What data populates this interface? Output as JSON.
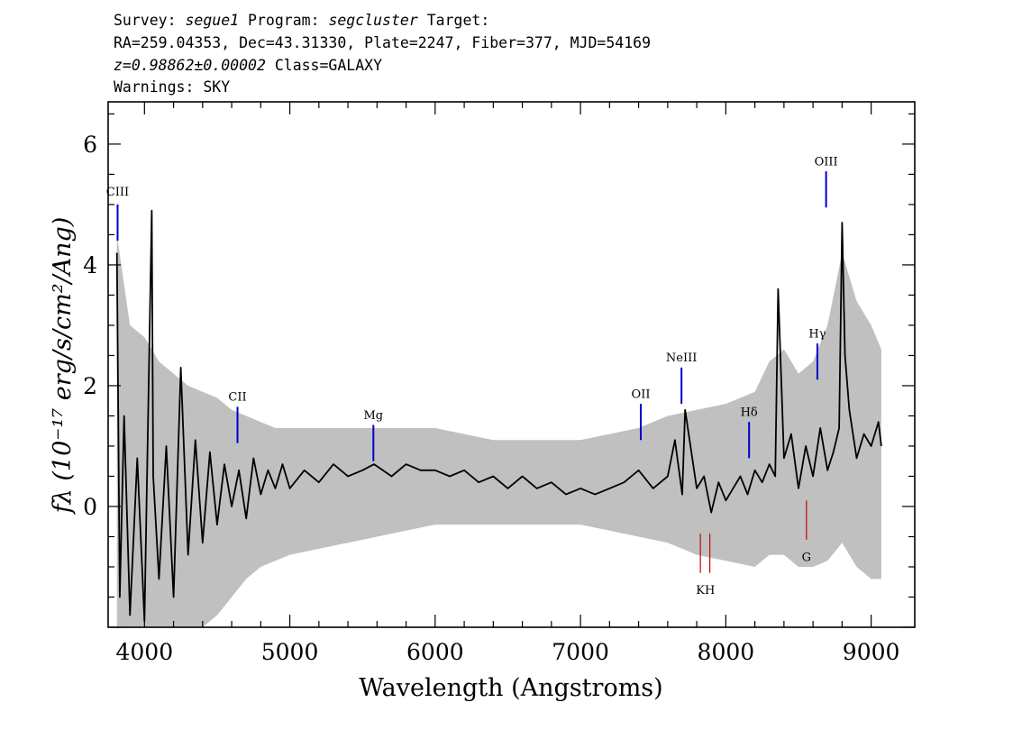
{
  "header": {
    "line1": {
      "survey_label": "Survey: ",
      "survey": "segue1",
      "program_label": " Program: ",
      "program": "segcluster",
      "target_label": " Target:"
    },
    "line2": "RA=259.04353, Dec=43.31330, Plate=2247, Fiber=377, MJD=54169",
    "line3": {
      "z": "z=0.98862±0.00002",
      "class": " Class=GALAXY"
    },
    "line4": "Warnings: SKY"
  },
  "chart_data": {
    "type": "line",
    "xlabel": "Wavelength (Angstroms)",
    "ylabel": "fλ (10⁻¹⁷ erg/s/cm²/Ang)",
    "xlim": [
      3750,
      9300
    ],
    "ylim": [
      -2.0,
      6.7
    ],
    "x_ticks": [
      4000,
      5000,
      6000,
      7000,
      8000,
      9000
    ],
    "y_ticks": [
      0,
      2,
      4,
      6
    ],
    "series": [
      {
        "role": "error band (gray)",
        "color": "#c0c0c0",
        "x": [
          3810,
          3900,
          4000,
          4100,
          4200,
          4300,
          4400,
          4500,
          4600,
          4700,
          4800,
          4900,
          5000,
          5200,
          5400,
          5600,
          5800,
          6000,
          6200,
          6400,
          6600,
          6800,
          7000,
          7200,
          7400,
          7600,
          7800,
          8000,
          8200,
          8300,
          8400,
          8500,
          8600,
          8700,
          8800,
          8900,
          9000,
          9070
        ],
        "upper": [
          4.5,
          3.0,
          2.8,
          2.4,
          2.2,
          2.0,
          1.9,
          1.8,
          1.6,
          1.5,
          1.4,
          1.3,
          1.3,
          1.3,
          1.3,
          1.3,
          1.3,
          1.3,
          1.2,
          1.1,
          1.1,
          1.1,
          1.1,
          1.2,
          1.3,
          1.5,
          1.6,
          1.7,
          1.9,
          2.4,
          2.6,
          2.2,
          2.4,
          3.0,
          4.2,
          3.4,
          3.0,
          2.6
        ],
        "lower": [
          -2.0,
          -2.0,
          -2.0,
          -2.0,
          -2.0,
          -2.0,
          -2.0,
          -1.8,
          -1.5,
          -1.2,
          -1.0,
          -0.9,
          -0.8,
          -0.7,
          -0.6,
          -0.5,
          -0.4,
          -0.3,
          -0.3,
          -0.3,
          -0.3,
          -0.3,
          -0.3,
          -0.4,
          -0.5,
          -0.6,
          -0.8,
          -0.9,
          -1.0,
          -0.8,
          -0.8,
          -1.0,
          -1.0,
          -0.9,
          -0.6,
          -1.0,
          -1.2,
          -1.2
        ]
      },
      {
        "role": "flux (black)",
        "color": "#000000",
        "x": [
          3810,
          3830,
          3860,
          3900,
          3950,
          4000,
          4050,
          4060,
          4100,
          4150,
          4200,
          4250,
          4300,
          4350,
          4400,
          4450,
          4500,
          4550,
          4600,
          4650,
          4700,
          4750,
          4800,
          4850,
          4900,
          4950,
          5000,
          5100,
          5200,
          5300,
          5400,
          5500,
          5580,
          5700,
          5800,
          5900,
          6000,
          6100,
          6200,
          6300,
          6400,
          6500,
          6600,
          6700,
          6800,
          6900,
          7000,
          7100,
          7200,
          7300,
          7400,
          7500,
          7600,
          7650,
          7700,
          7720,
          7800,
          7850,
          7900,
          7950,
          8000,
          8050,
          8100,
          8150,
          8200,
          8250,
          8300,
          8340,
          8360,
          8400,
          8450,
          8500,
          8550,
          8600,
          8650,
          8700,
          8740,
          8780,
          8800,
          8820,
          8850,
          8900,
          8950,
          9000,
          9050,
          9070
        ],
        "y": [
          4.2,
          -1.5,
          1.5,
          -1.8,
          0.8,
          -1.9,
          4.9,
          0.5,
          -1.2,
          1.0,
          -1.5,
          2.3,
          -0.8,
          1.1,
          -0.6,
          0.9,
          -0.3,
          0.7,
          0.0,
          0.6,
          -0.2,
          0.8,
          0.2,
          0.6,
          0.3,
          0.7,
          0.3,
          0.6,
          0.4,
          0.7,
          0.5,
          0.6,
          0.7,
          0.5,
          0.7,
          0.6,
          0.6,
          0.5,
          0.6,
          0.4,
          0.5,
          0.3,
          0.5,
          0.3,
          0.4,
          0.2,
          0.3,
          0.2,
          0.3,
          0.4,
          0.6,
          0.3,
          0.5,
          1.1,
          0.2,
          1.6,
          0.3,
          0.5,
          -0.1,
          0.4,
          0.1,
          0.3,
          0.5,
          0.2,
          0.6,
          0.4,
          0.7,
          0.5,
          3.6,
          0.8,
          1.2,
          0.3,
          1.0,
          0.5,
          1.3,
          0.6,
          0.9,
          1.3,
          4.7,
          2.5,
          1.6,
          0.8,
          1.2,
          1.0,
          1.4,
          1.0
        ]
      }
    ],
    "annotations": [
      {
        "label": "CIII",
        "wavelength": 3815,
        "color": "#0000cc",
        "y_low": 4.4,
        "y_high": 5.0,
        "label_y": 5.15,
        "position": "above"
      },
      {
        "label": "CII",
        "wavelength": 4640,
        "color": "#0000cc",
        "y_low": 1.05,
        "y_high": 1.65,
        "label_y": 1.75,
        "position": "above"
      },
      {
        "label": "Mg",
        "wavelength": 5575,
        "color": "#0000cc",
        "y_low": 0.75,
        "y_high": 1.35,
        "label_y": 1.45,
        "position": "above"
      },
      {
        "label": "OII",
        "wavelength": 7415,
        "color": "#0000cc",
        "y_low": 1.1,
        "y_high": 1.7,
        "label_y": 1.8,
        "position": "above"
      },
      {
        "label": "NeIII",
        "wavelength": 7695,
        "color": "#0000cc",
        "y_low": 1.7,
        "y_high": 2.3,
        "label_y": 2.4,
        "position": "above"
      },
      {
        "label": "Hδ",
        "wavelength": 8160,
        "color": "#0000cc",
        "y_low": 0.8,
        "y_high": 1.4,
        "label_y": 1.5,
        "position": "above"
      },
      {
        "label": "Hγ",
        "wavelength": 8630,
        "color": "#0000cc",
        "y_low": 2.1,
        "y_high": 2.7,
        "label_y": 2.8,
        "position": "above"
      },
      {
        "label": "OIII",
        "wavelength": 8690,
        "color": "#0000cc",
        "y_low": 4.95,
        "y_high": 5.55,
        "label_y": 5.65,
        "position": "above"
      },
      {
        "label": "K",
        "wavelength": 7825,
        "color": "#cc0000",
        "y_low": -1.1,
        "y_high": -0.45,
        "label_y": -1.45,
        "position": "below"
      },
      {
        "label": "H",
        "wavelength": 7890,
        "color": "#cc0000",
        "y_low": -1.1,
        "y_high": -0.45,
        "label_y": -1.45,
        "position": "below"
      },
      {
        "label": "G",
        "wavelength": 8555,
        "color": "#cc0000",
        "y_low": -0.55,
        "y_high": 0.1,
        "label_y": -0.9,
        "position": "below"
      }
    ]
  }
}
